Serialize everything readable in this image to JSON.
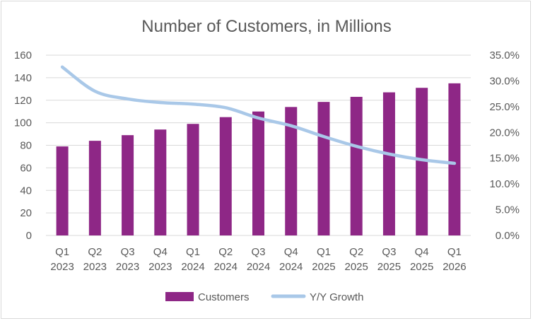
{
  "chart_data": {
    "type": "bar",
    "title": "Number of Customers, in Millions",
    "xlabel": "",
    "ylabel": "",
    "categories": [
      [
        "Q1",
        "2023"
      ],
      [
        "Q2",
        "2023"
      ],
      [
        "Q3",
        "2023"
      ],
      [
        "Q4",
        "2023"
      ],
      [
        "Q1",
        "2024"
      ],
      [
        "Q2",
        "2024"
      ],
      [
        "Q3",
        "2024"
      ],
      [
        "Q4",
        "2024"
      ],
      [
        "Q1",
        "2025"
      ],
      [
        "Q2",
        "2025"
      ],
      [
        "Q3",
        "2025"
      ],
      [
        "Q4",
        "2025"
      ],
      [
        "Q1",
        "2026"
      ]
    ],
    "series": [
      {
        "name": "Customers",
        "type": "bar",
        "axis": "left",
        "color": "#8e2786",
        "values": [
          79,
          84,
          89,
          94,
          99,
          105,
          110,
          114,
          118.5,
          123,
          127,
          131,
          135
        ]
      },
      {
        "name": "Y/Y Growth",
        "type": "line",
        "axis": "right",
        "color": "#a9c8e8",
        "values": [
          32.7,
          28.0,
          26.5,
          25.8,
          25.5,
          24.8,
          22.8,
          21.3,
          19.2,
          17.3,
          15.8,
          14.7,
          14.0
        ]
      }
    ],
    "ylim_left": [
      0,
      160
    ],
    "yticks_left": [
      "0",
      "20",
      "40",
      "60",
      "80",
      "100",
      "120",
      "140",
      "160"
    ],
    "ylim_right": [
      0,
      35
    ],
    "yticks_right": [
      "0.0%",
      "5.0%",
      "10.0%",
      "15.0%",
      "20.0%",
      "25.0%",
      "30.0%",
      "35.0%"
    ],
    "grid": true,
    "legend_position": "bottom"
  }
}
